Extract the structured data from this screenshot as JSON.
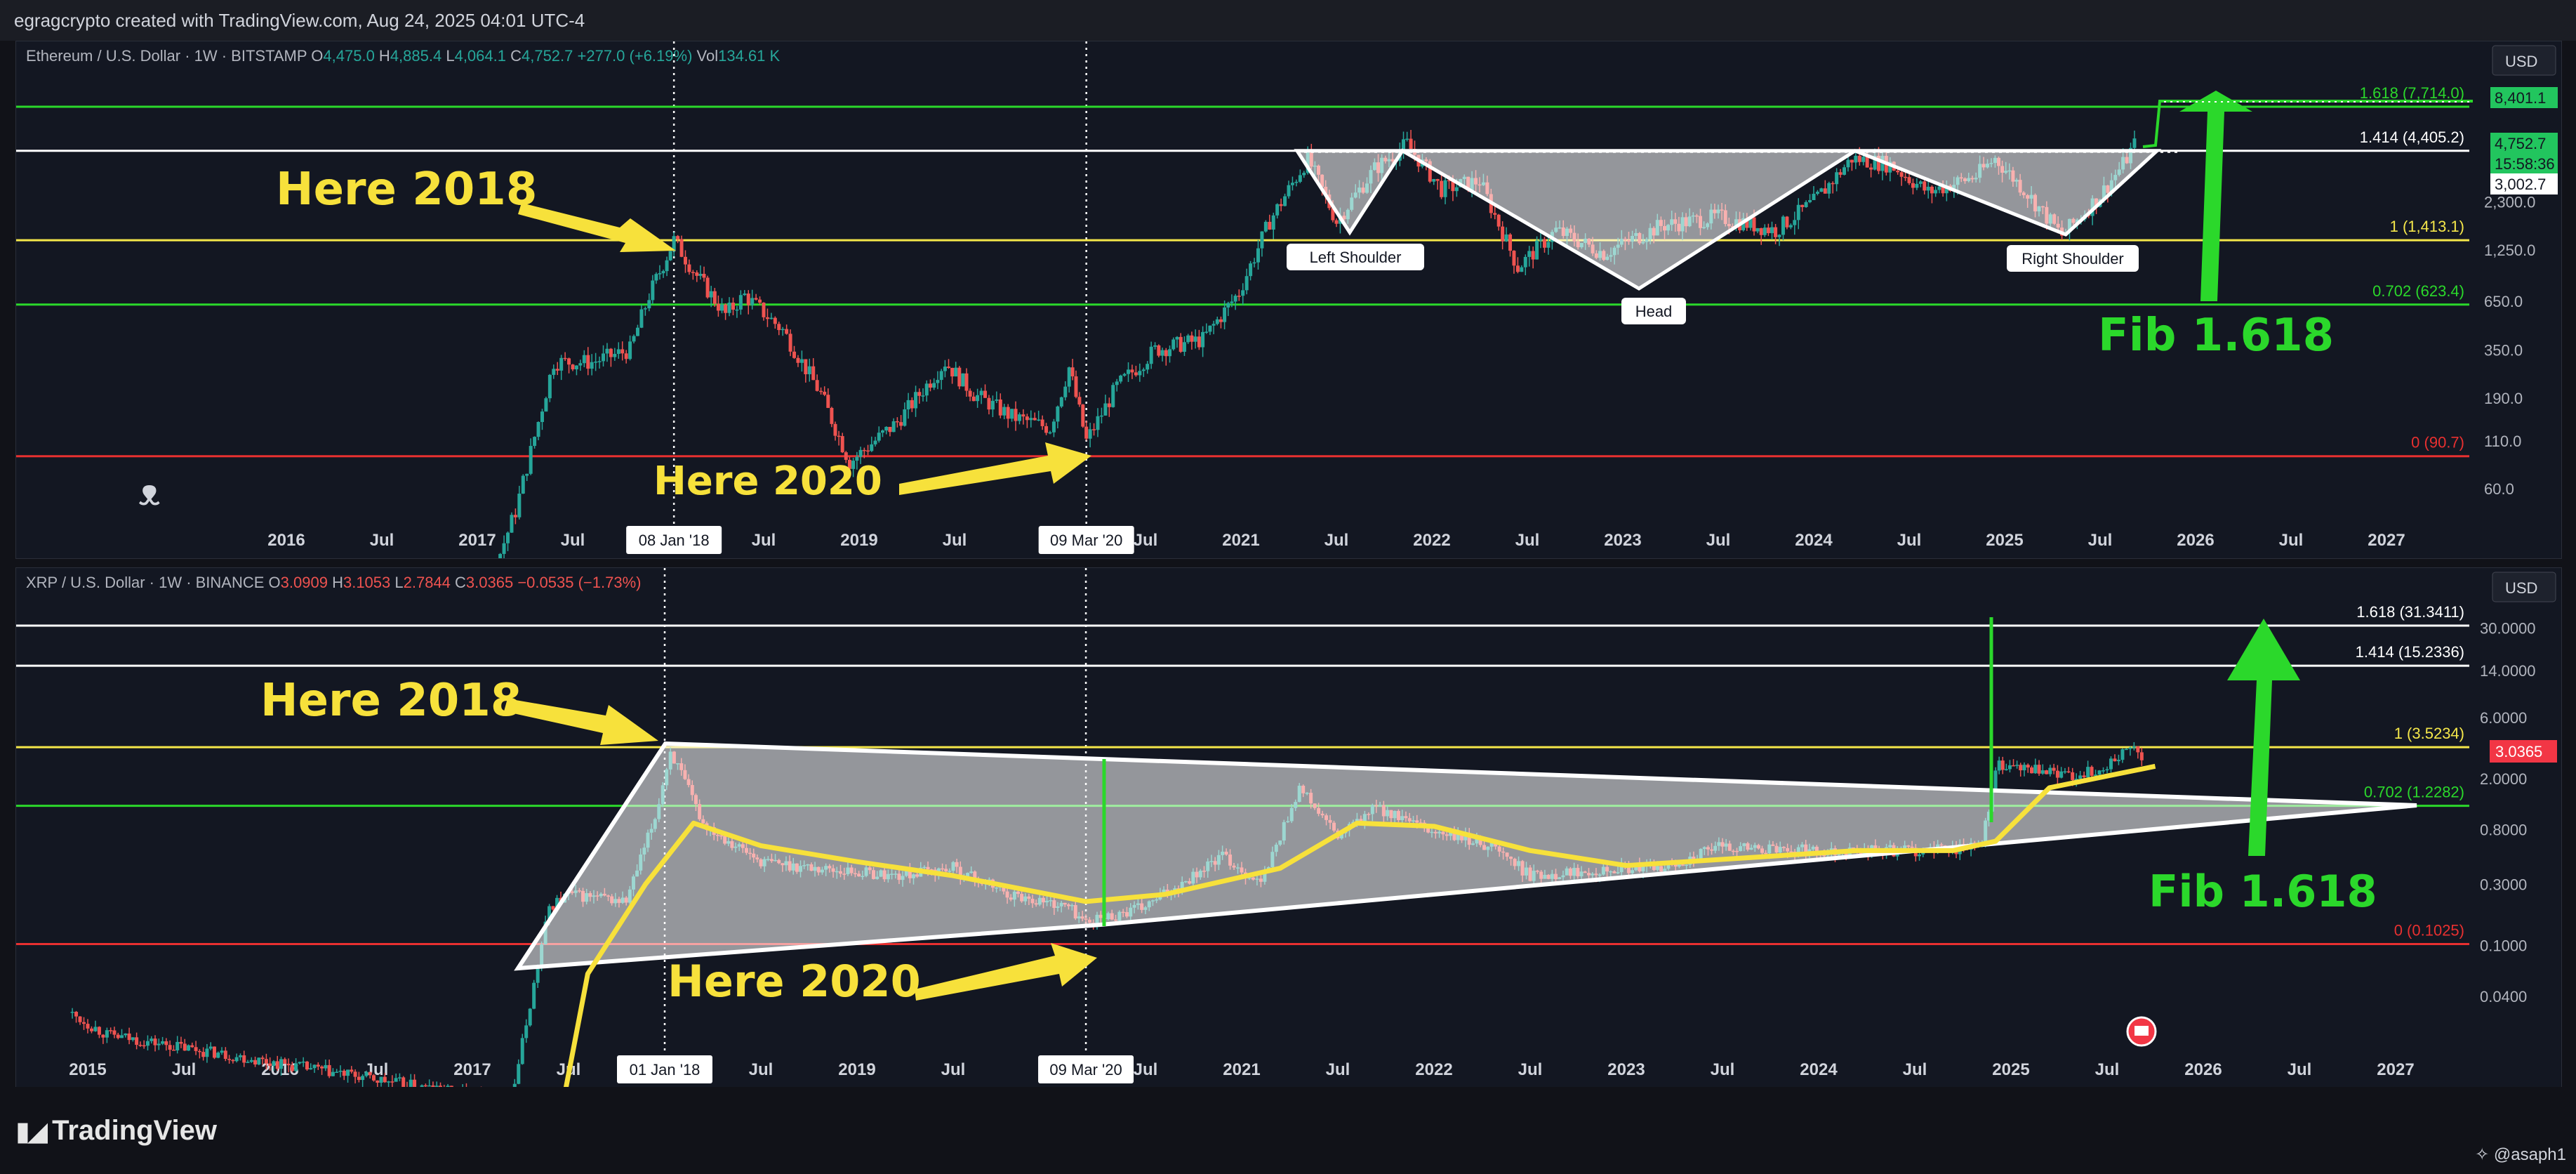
{
  "header": {
    "credit": "egragcrypto created with TradingView.com, Aug 24, 2025 04:01 UTC-4"
  },
  "footer": {
    "brand": "TradingView",
    "handle": "@asaph1"
  },
  "icons": {
    "logo": "tradingview-logo-icon",
    "dino": "dino-icon",
    "flag": "us-flag-icon",
    "handle": "gear-icon"
  },
  "colors": {
    "bg": "#131722",
    "up": "#26a69a",
    "down": "#ef5350",
    "green_line": "#2bd82b",
    "yellow_line": "#f5e74a",
    "red_line": "#e83030",
    "white_line": "#ffffff",
    "annot": "#f7e13b",
    "fib_text": "#2bd82b",
    "price_badge": "#22c55e"
  },
  "chart_data": [
    {
      "type": "candlestick",
      "symbol_line": {
        "name": "Ethereum / U.S. Dollar · 1W · BITSTAMP",
        "o_label": "O",
        "o": "4,475.0",
        "h_label": "H",
        "h": "4,885.4",
        "l_label": "L",
        "l": "4,064.1",
        "c_label": "C",
        "c": "4,752.7",
        "chg": "+277.0 (+6.19%)",
        "vol_label": "Vol",
        "vol": "134.61 K"
      },
      "currency": "USD",
      "scale": "log",
      "x_ticks": [
        "2016",
        "Jul",
        "2017",
        "Jul",
        "08 Jan '18",
        "Jul",
        "2019",
        "Jul",
        "09 Mar '20",
        "Jul",
        "2021",
        "Jul",
        "2022",
        "Jul",
        "2023",
        "Jul",
        "2024",
        "Jul",
        "2025",
        "Jul",
        "2026",
        "Jul",
        "2027"
      ],
      "y_ticks": [
        "60.0",
        "110.0",
        "190.0",
        "350.0",
        "650.0",
        "1,250.0",
        "2,300.0"
      ],
      "fib_levels": [
        {
          "label": "1.618 (7,714.0)",
          "value": 7714.0,
          "color": "green"
        },
        {
          "label": "1.414 (4,405.2)",
          "value": 4405.2,
          "color": "white"
        },
        {
          "label": "1 (1,413.1)",
          "value": 1413.1,
          "color": "yellow"
        },
        {
          "label": "0.702 (623.4)",
          "value": 623.4,
          "color": "green"
        },
        {
          "label": "0 (90.7)",
          "value": 90.7,
          "color": "red"
        }
      ],
      "price_badges": [
        {
          "label": "8,401.1",
          "value": 8401.1
        },
        {
          "label": "4,752.7",
          "value": 4752.7
        },
        {
          "label": "15:58:36",
          "value": 4752.7
        },
        {
          "label": "3,002.7",
          "value": 3002.7
        }
      ],
      "pattern_labels": [
        "Left Shoulder",
        "Head",
        "Right Shoulder"
      ],
      "annotations": [
        "Here 2018",
        "Here 2020",
        "Fib 1.618"
      ],
      "markers": [
        "08 Jan '18",
        "09 Mar '20"
      ],
      "price_path": [
        [
          2016.5,
          9
        ],
        [
          2017.0,
          12
        ],
        [
          2017.2,
          45
        ],
        [
          2017.4,
          300
        ],
        [
          2017.6,
          300
        ],
        [
          2017.8,
          350
        ],
        [
          2017.9,
          700
        ],
        [
          2018.03,
          1413
        ],
        [
          2018.15,
          900
        ],
        [
          2018.3,
          550
        ],
        [
          2018.4,
          700
        ],
        [
          2018.6,
          450
        ],
        [
          2018.8,
          200
        ],
        [
          2018.95,
          84
        ],
        [
          2019.2,
          140
        ],
        [
          2019.45,
          300
        ],
        [
          2019.6,
          200
        ],
        [
          2019.8,
          150
        ],
        [
          2020.0,
          130
        ],
        [
          2020.1,
          280
        ],
        [
          2020.19,
          110
        ],
        [
          2020.35,
          220
        ],
        [
          2020.55,
          350
        ],
        [
          2020.8,
          400
        ],
        [
          2020.99,
          730
        ],
        [
          2021.15,
          1800
        ],
        [
          2021.35,
          4000
        ],
        [
          2021.5,
          1800
        ],
        [
          2021.7,
          3500
        ],
        [
          2021.87,
          4800
        ],
        [
          2022.05,
          2700
        ],
        [
          2022.25,
          3000
        ],
        [
          2022.45,
          1000
        ],
        [
          2022.65,
          1600
        ],
        [
          2022.9,
          1200
        ],
        [
          2023.2,
          1700
        ],
        [
          2023.5,
          1900
        ],
        [
          2023.8,
          1600
        ],
        [
          2024.0,
          2300
        ],
        [
          2024.2,
          4000
        ],
        [
          2024.4,
          3700
        ],
        [
          2024.6,
          2600
        ],
        [
          2024.85,
          3200
        ],
        [
          2024.95,
          4000
        ],
        [
          2025.1,
          2700
        ],
        [
          2025.3,
          1500
        ],
        [
          2025.5,
          2500
        ],
        [
          2025.62,
          3700
        ],
        [
          2025.68,
          4752
        ]
      ]
    },
    {
      "type": "candlestick",
      "symbol_line": {
        "name": "XRP / U.S. Dollar · 1W · BINANCE",
        "o_label": "O",
        "o": "3.0909",
        "h_label": "H",
        "h": "3.1053",
        "l_label": "L",
        "l": "2.7844",
        "c_label": "C",
        "c": "3.0365",
        "chg": "−0.0535 (−1.73%)"
      },
      "currency": "USD",
      "scale": "log",
      "x_ticks": [
        "2015",
        "Jul",
        "2016",
        "Jul",
        "2017",
        "Jul",
        "01 Jan '18",
        "Jul",
        "2019",
        "Jul",
        "09 Mar '20",
        "Jul",
        "2021",
        "Jul",
        "2022",
        "Jul",
        "2023",
        "Jul",
        "2024",
        "Jul",
        "2025",
        "Jul",
        "2026",
        "Jul",
        "2027"
      ],
      "y_ticks": [
        "0.0400",
        "0.1000",
        "0.3000",
        "0.8000",
        "2.0000",
        "6.0000",
        "14.0000",
        "30.0000"
      ],
      "fib_levels": [
        {
          "label": "1.618 (31.3411)",
          "value": 31.3411,
          "color": "white"
        },
        {
          "label": "1.414 (15.2336)",
          "value": 15.2336,
          "color": "white"
        },
        {
          "label": "1 (3.5234)",
          "value": 3.5234,
          "color": "yellow"
        },
        {
          "label": "0.702 (1.2282)",
          "value": 1.2282,
          "color": "green"
        },
        {
          "label": "0 (0.1025)",
          "value": 0.1025,
          "color": "red"
        }
      ],
      "price_badges": [
        {
          "label": "3.0365",
          "value": 3.0365
        }
      ],
      "annotations": [
        "Here 2018",
        "Here 2020",
        "Fib 1.618"
      ],
      "markers": [
        "01 Jan '18",
        "09 Mar '20"
      ],
      "price_path": [
        [
          2014.9,
          0.03
        ],
        [
          2015.1,
          0.02
        ],
        [
          2017.2,
          0.006
        ],
        [
          2017.4,
          0.2
        ],
        [
          2017.5,
          0.25
        ],
        [
          2017.8,
          0.22
        ],
        [
          2017.95,
          1.0
        ],
        [
          2018.03,
          3.3
        ],
        [
          2018.2,
          0.9
        ],
        [
          2018.5,
          0.45
        ],
        [
          2018.8,
          0.4
        ],
        [
          2019.2,
          0.35
        ],
        [
          2019.5,
          0.4
        ],
        [
          2019.8,
          0.25
        ],
        [
          2020.1,
          0.2
        ],
        [
          2020.19,
          0.15
        ],
        [
          2020.5,
          0.2
        ],
        [
          2020.9,
          0.5
        ],
        [
          2021.1,
          0.3
        ],
        [
          2021.3,
          1.7
        ],
        [
          2021.5,
          0.7
        ],
        [
          2021.7,
          1.2
        ],
        [
          2021.95,
          0.8
        ],
        [
          2022.3,
          0.6
        ],
        [
          2022.5,
          0.35
        ],
        [
          2022.9,
          0.4
        ],
        [
          2023.2,
          0.4
        ],
        [
          2023.5,
          0.6
        ],
        [
          2023.8,
          0.55
        ],
        [
          2024.2,
          0.55
        ],
        [
          2024.6,
          0.55
        ],
        [
          2024.85,
          0.6
        ],
        [
          2024.92,
          2.5
        ],
        [
          2025.05,
          2.4
        ],
        [
          2025.3,
          2.1
        ],
        [
          2025.5,
          2.4
        ],
        [
          2025.6,
          3.5
        ],
        [
          2025.68,
          3.04
        ]
      ]
    }
  ]
}
